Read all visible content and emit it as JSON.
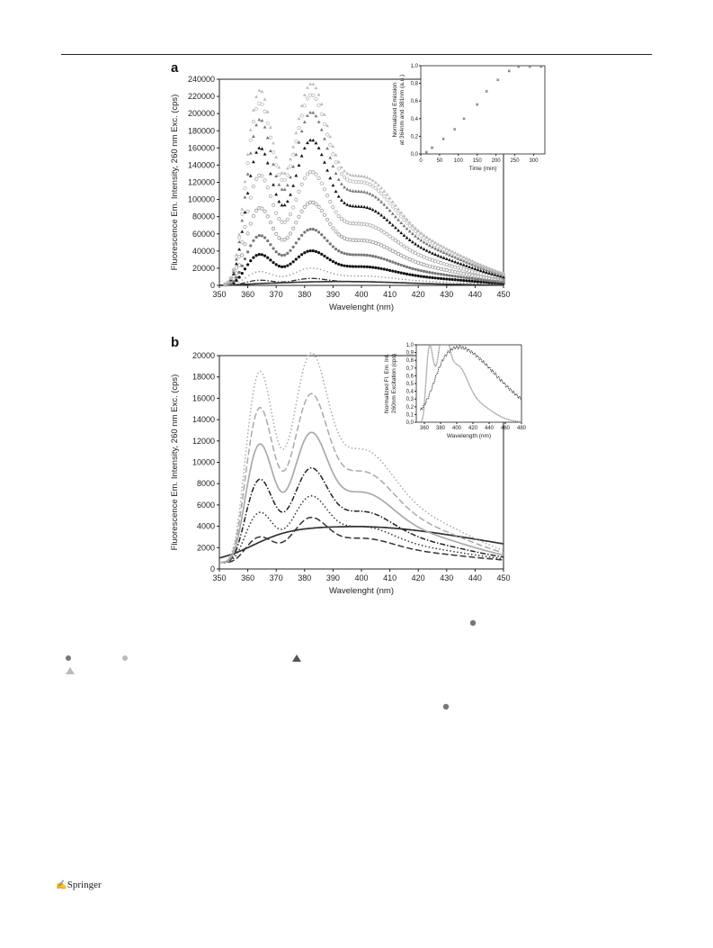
{
  "chart_data": [
    {
      "panel": "a",
      "type": "scatter",
      "xlabel": "Wavelenght (nm)",
      "ylabel": "Fluorescence Em. Intensity, 260 nm Exc. (cps)",
      "xlim": [
        350,
        450
      ],
      "ylim": [
        0,
        240000
      ],
      "xticks": [
        "350",
        "360",
        "370",
        "380",
        "390",
        "400",
        "410",
        "420",
        "430",
        "440",
        "450"
      ],
      "yticks": [
        "0",
        "20000",
        "40000",
        "60000",
        "80000",
        "100000",
        "120000",
        "140000",
        "160000",
        "180000",
        "200000",
        "220000",
        "240000"
      ],
      "series": [
        {
          "peak364": 2000,
          "peak381": 4500,
          "marker": "line",
          "color": "#333333"
        },
        {
          "peak364": 6000,
          "peak381": 8000,
          "marker": "dashdot",
          "color": "#333333"
        },
        {
          "peak364": 16000,
          "peak381": 20000,
          "marker": "dot",
          "color": "#999999"
        },
        {
          "peak364": 36000,
          "peak381": 40000,
          "marker": "filled-circle",
          "color": "#111111"
        },
        {
          "peak364": 58000,
          "peak381": 65000,
          "marker": "filled-circle",
          "color": "#777777"
        },
        {
          "peak364": 90000,
          "peak381": 96000,
          "marker": "open-circle",
          "color": "#999999"
        },
        {
          "peak364": 128000,
          "peak381": 131000,
          "marker": "open-circle",
          "color": "#aaaaaa"
        },
        {
          "peak364": 160000,
          "peak381": 168000,
          "marker": "filled-triangle",
          "color": "#111111"
        },
        {
          "peak364": 193000,
          "peak381": 200000,
          "marker": "filled-triangle",
          "color": "#777777"
        },
        {
          "peak364": 212000,
          "peak381": 220000,
          "marker": "open-circle",
          "color": "#bbbbbb"
        },
        {
          "peak364": 227000,
          "peak381": 233000,
          "marker": "filled-triangle",
          "color": "#bbbbbb"
        }
      ],
      "inset": {
        "type": "scatter",
        "xlabel": "Time (min)",
        "ylabel": "Normalized Emission at 364nm and 381nm (a.u.)",
        "xlim": [
          0,
          330
        ],
        "ylim": [
          0,
          1.0
        ],
        "xticks": [
          "0",
          "50",
          "100",
          "150",
          "200",
          "250",
          "300"
        ],
        "yticks": [
          "0,0",
          "0,2",
          "0,4",
          "0,6",
          "0,8",
          "1,0"
        ],
        "x": [
          15,
          30,
          60,
          90,
          115,
          150,
          175,
          205,
          235,
          260,
          290,
          320
        ],
        "y": [
          0.02,
          0.07,
          0.17,
          0.28,
          0.4,
          0.56,
          0.71,
          0.84,
          0.94,
          0.99,
          0.99,
          0.99
        ]
      }
    },
    {
      "panel": "b",
      "type": "line",
      "xlabel": "Wavelenght (nm)",
      "ylabel": "Fluorescence Em. Intensity, 260 nm Exc. (cps)",
      "xlim": [
        350,
        450
      ],
      "ylim": [
        0,
        20000
      ],
      "xticks": [
        "350",
        "360",
        "370",
        "380",
        "390",
        "400",
        "410",
        "420",
        "430",
        "440",
        "450"
      ],
      "yticks": [
        "0",
        "2000",
        "4000",
        "6000",
        "8000",
        "10000",
        "12000",
        "14000",
        "16000",
        "18000",
        "20000"
      ],
      "series": [
        {
          "peak364": 2400,
          "peak381": 4000,
          "style": "solid",
          "color": "#333333",
          "kind": "broad"
        },
        {
          "peak364": 3000,
          "peak381": 4800,
          "style": "dashed",
          "color": "#333333",
          "kind": "band"
        },
        {
          "peak364": 5300,
          "peak381": 6800,
          "style": "dotted",
          "color": "#333333",
          "kind": "band"
        },
        {
          "peak364": 8400,
          "peak381": 9400,
          "style": "dashdot",
          "color": "#222222",
          "kind": "band"
        },
        {
          "peak364": 11700,
          "peak381": 12700,
          "style": "solid",
          "color": "#aaaaaa",
          "kind": "band"
        },
        {
          "peak364": 15100,
          "peak381": 16300,
          "style": "dashed",
          "color": "#aaaaaa",
          "kind": "band"
        },
        {
          "peak364": 18500,
          "peak381": 20100,
          "style": "dotted",
          "color": "#aaaaaa",
          "kind": "band"
        }
      ],
      "inset": {
        "type": "line",
        "xlabel": "Wavelength (nm)",
        "ylabel": "Normalized Fl. Em. Int. 260nm Excitation (cps)",
        "xlim": [
          350,
          480
        ],
        "ylim": [
          0,
          1.0
        ],
        "xticks": [
          "360",
          "380",
          "400",
          "420",
          "440",
          "460",
          "480"
        ],
        "yticks": [
          "0,0",
          "0,1",
          "0,2",
          "0,3",
          "0,4",
          "0,5",
          "0,6",
          "0,7",
          "0,8",
          "0,9",
          "1,0"
        ]
      }
    }
  ],
  "footer": {
    "publisher": "Springer",
    "logo_glyph": "✍"
  }
}
